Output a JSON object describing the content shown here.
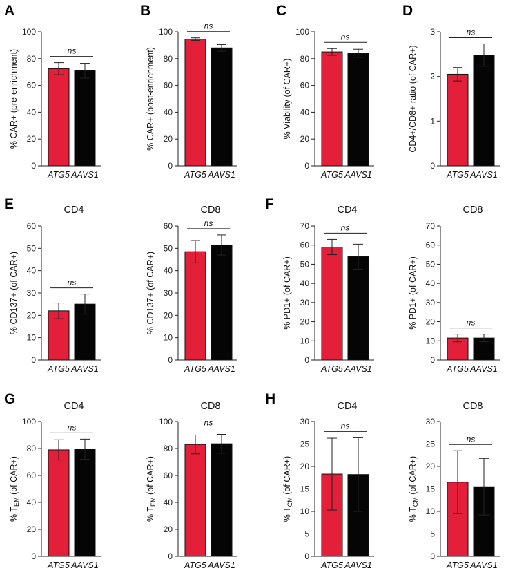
{
  "colors": {
    "atg5": "#e31f3a",
    "aavs1": "#050505"
  },
  "chart_data": [
    {
      "type": "bar",
      "panel": "A",
      "title": "",
      "ylabel": "% CAR+ (pre-enrichment)",
      "ylim": [
        0,
        100
      ],
      "yticks": [
        "0",
        "20",
        "40",
        "60",
        "80",
        "100"
      ],
      "categories": [
        "ATG5",
        "AAVS1"
      ],
      "values": [
        72.5,
        71.0
      ],
      "errors": [
        4.5,
        5.5
      ],
      "significance": "ns"
    },
    {
      "type": "bar",
      "panel": "B",
      "title": "",
      "ylabel": "% CAR+ (post-enrichment)",
      "ylim": [
        0,
        100
      ],
      "yticks": [
        "0",
        "20",
        "40",
        "60",
        "80",
        "100"
      ],
      "categories": [
        "ATG5",
        "AAVS1"
      ],
      "values": [
        94.5,
        88.0
      ],
      "errors": [
        1.0,
        2.5
      ],
      "significance": "ns"
    },
    {
      "type": "bar",
      "panel": "C",
      "title": "",
      "ylabel": "% Viability (of CAR+)",
      "ylim": [
        0,
        100
      ],
      "yticks": [
        "0",
        "20",
        "40",
        "60",
        "80",
        "100"
      ],
      "categories": [
        "ATG5",
        "AAVS1"
      ],
      "values": [
        85.0,
        84.0
      ],
      "errors": [
        2.5,
        3.0
      ],
      "significance": "ns"
    },
    {
      "type": "bar",
      "panel": "D",
      "title": "",
      "ylabel": "CD4+/CD8+ ratio (of CAR+)",
      "ylim": [
        0,
        3
      ],
      "yticks": [
        "0",
        "1",
        "2",
        "3"
      ],
      "categories": [
        "ATG5",
        "AAVS1"
      ],
      "values": [
        2.05,
        2.48
      ],
      "errors": [
        0.15,
        0.25
      ],
      "significance": "ns"
    },
    {
      "type": "bar",
      "panel": "E",
      "title": "CD4",
      "ylabel": "% CD137+ (of CAR+)",
      "ylim": [
        0,
        60
      ],
      "yticks": [
        "0",
        "10",
        "20",
        "30",
        "40",
        "50",
        "60"
      ],
      "categories": [
        "ATG5",
        "AAVS1"
      ],
      "values": [
        22.0,
        25.0
      ],
      "errors": [
        3.5,
        4.5
      ],
      "significance": "ns"
    },
    {
      "type": "bar",
      "panel": "",
      "title": "CD8",
      "ylabel": "% CD137+ (of CAR+)",
      "ylim": [
        0,
        60
      ],
      "yticks": [
        "0",
        "10",
        "20",
        "30",
        "40",
        "50",
        "60"
      ],
      "categories": [
        "ATG5",
        "AAVS1"
      ],
      "values": [
        48.5,
        51.5
      ],
      "errors": [
        5.0,
        4.5
      ],
      "significance": "ns"
    },
    {
      "type": "bar",
      "panel": "F",
      "title": "CD4",
      "ylabel": "% PD1+ (of CAR+)",
      "ylim": [
        0,
        70
      ],
      "yticks": [
        "0",
        "10",
        "20",
        "30",
        "40",
        "50",
        "60",
        "70"
      ],
      "categories": [
        "ATG5",
        "AAVS1"
      ],
      "values": [
        59.0,
        54.0
      ],
      "errors": [
        4.0,
        6.5
      ],
      "significance": "ns"
    },
    {
      "type": "bar",
      "panel": "",
      "title": "CD8",
      "ylabel": "% PD1+ (of CAR+)",
      "ylim": [
        0,
        70
      ],
      "yticks": [
        "0",
        "10",
        "20",
        "30",
        "40",
        "50",
        "60",
        "70"
      ],
      "categories": [
        "ATG5",
        "AAVS1"
      ],
      "values": [
        11.5,
        11.5
      ],
      "errors": [
        2.0,
        2.0
      ],
      "significance": "ns"
    },
    {
      "type": "bar",
      "panel": "G",
      "title": "CD4",
      "ylabel": "% T",
      "ylabel_sub": "EM",
      "ylabel_tail": " (of CAR+)",
      "ylim": [
        0,
        100
      ],
      "yticks": [
        "0",
        "20",
        "40",
        "60",
        "80",
        "100"
      ],
      "categories": [
        "ATG5",
        "AAVS1"
      ],
      "values": [
        79.0,
        79.5
      ],
      "errors": [
        7.5,
        7.5
      ],
      "significance": "ns"
    },
    {
      "type": "bar",
      "panel": "",
      "title": "CD8",
      "ylabel": "% T",
      "ylabel_sub": "EM",
      "ylabel_tail": " (of CAR+)",
      "ylim": [
        0,
        100
      ],
      "yticks": [
        "0",
        "20",
        "40",
        "60",
        "80",
        "100"
      ],
      "categories": [
        "ATG5",
        "AAVS1"
      ],
      "values": [
        83.0,
        83.5
      ],
      "errors": [
        7.0,
        7.0
      ],
      "significance": "ns"
    },
    {
      "type": "bar",
      "panel": "H",
      "title": "CD4",
      "ylabel": "% T",
      "ylabel_sub": "CM",
      "ylabel_tail": " (of CAR+)",
      "ylim": [
        0,
        30
      ],
      "yticks": [
        "0",
        "5",
        "10",
        "15",
        "20",
        "25",
        "30"
      ],
      "categories": [
        "ATG5",
        "AAVS1"
      ],
      "values": [
        18.3,
        18.2
      ],
      "errors": [
        8.0,
        8.2
      ],
      "significance": "ns"
    },
    {
      "type": "bar",
      "panel": "",
      "title": "CD8",
      "ylabel": "% T",
      "ylabel_sub": "CM",
      "ylabel_tail": " (of CAR+)",
      "ylim": [
        0,
        30
      ],
      "yticks": [
        "0",
        "5",
        "10",
        "15",
        "20",
        "25",
        "30"
      ],
      "categories": [
        "ATG5",
        "AAVS1"
      ],
      "values": [
        16.5,
        15.5
      ],
      "errors": [
        7.0,
        6.3
      ],
      "significance": "ns"
    }
  ]
}
